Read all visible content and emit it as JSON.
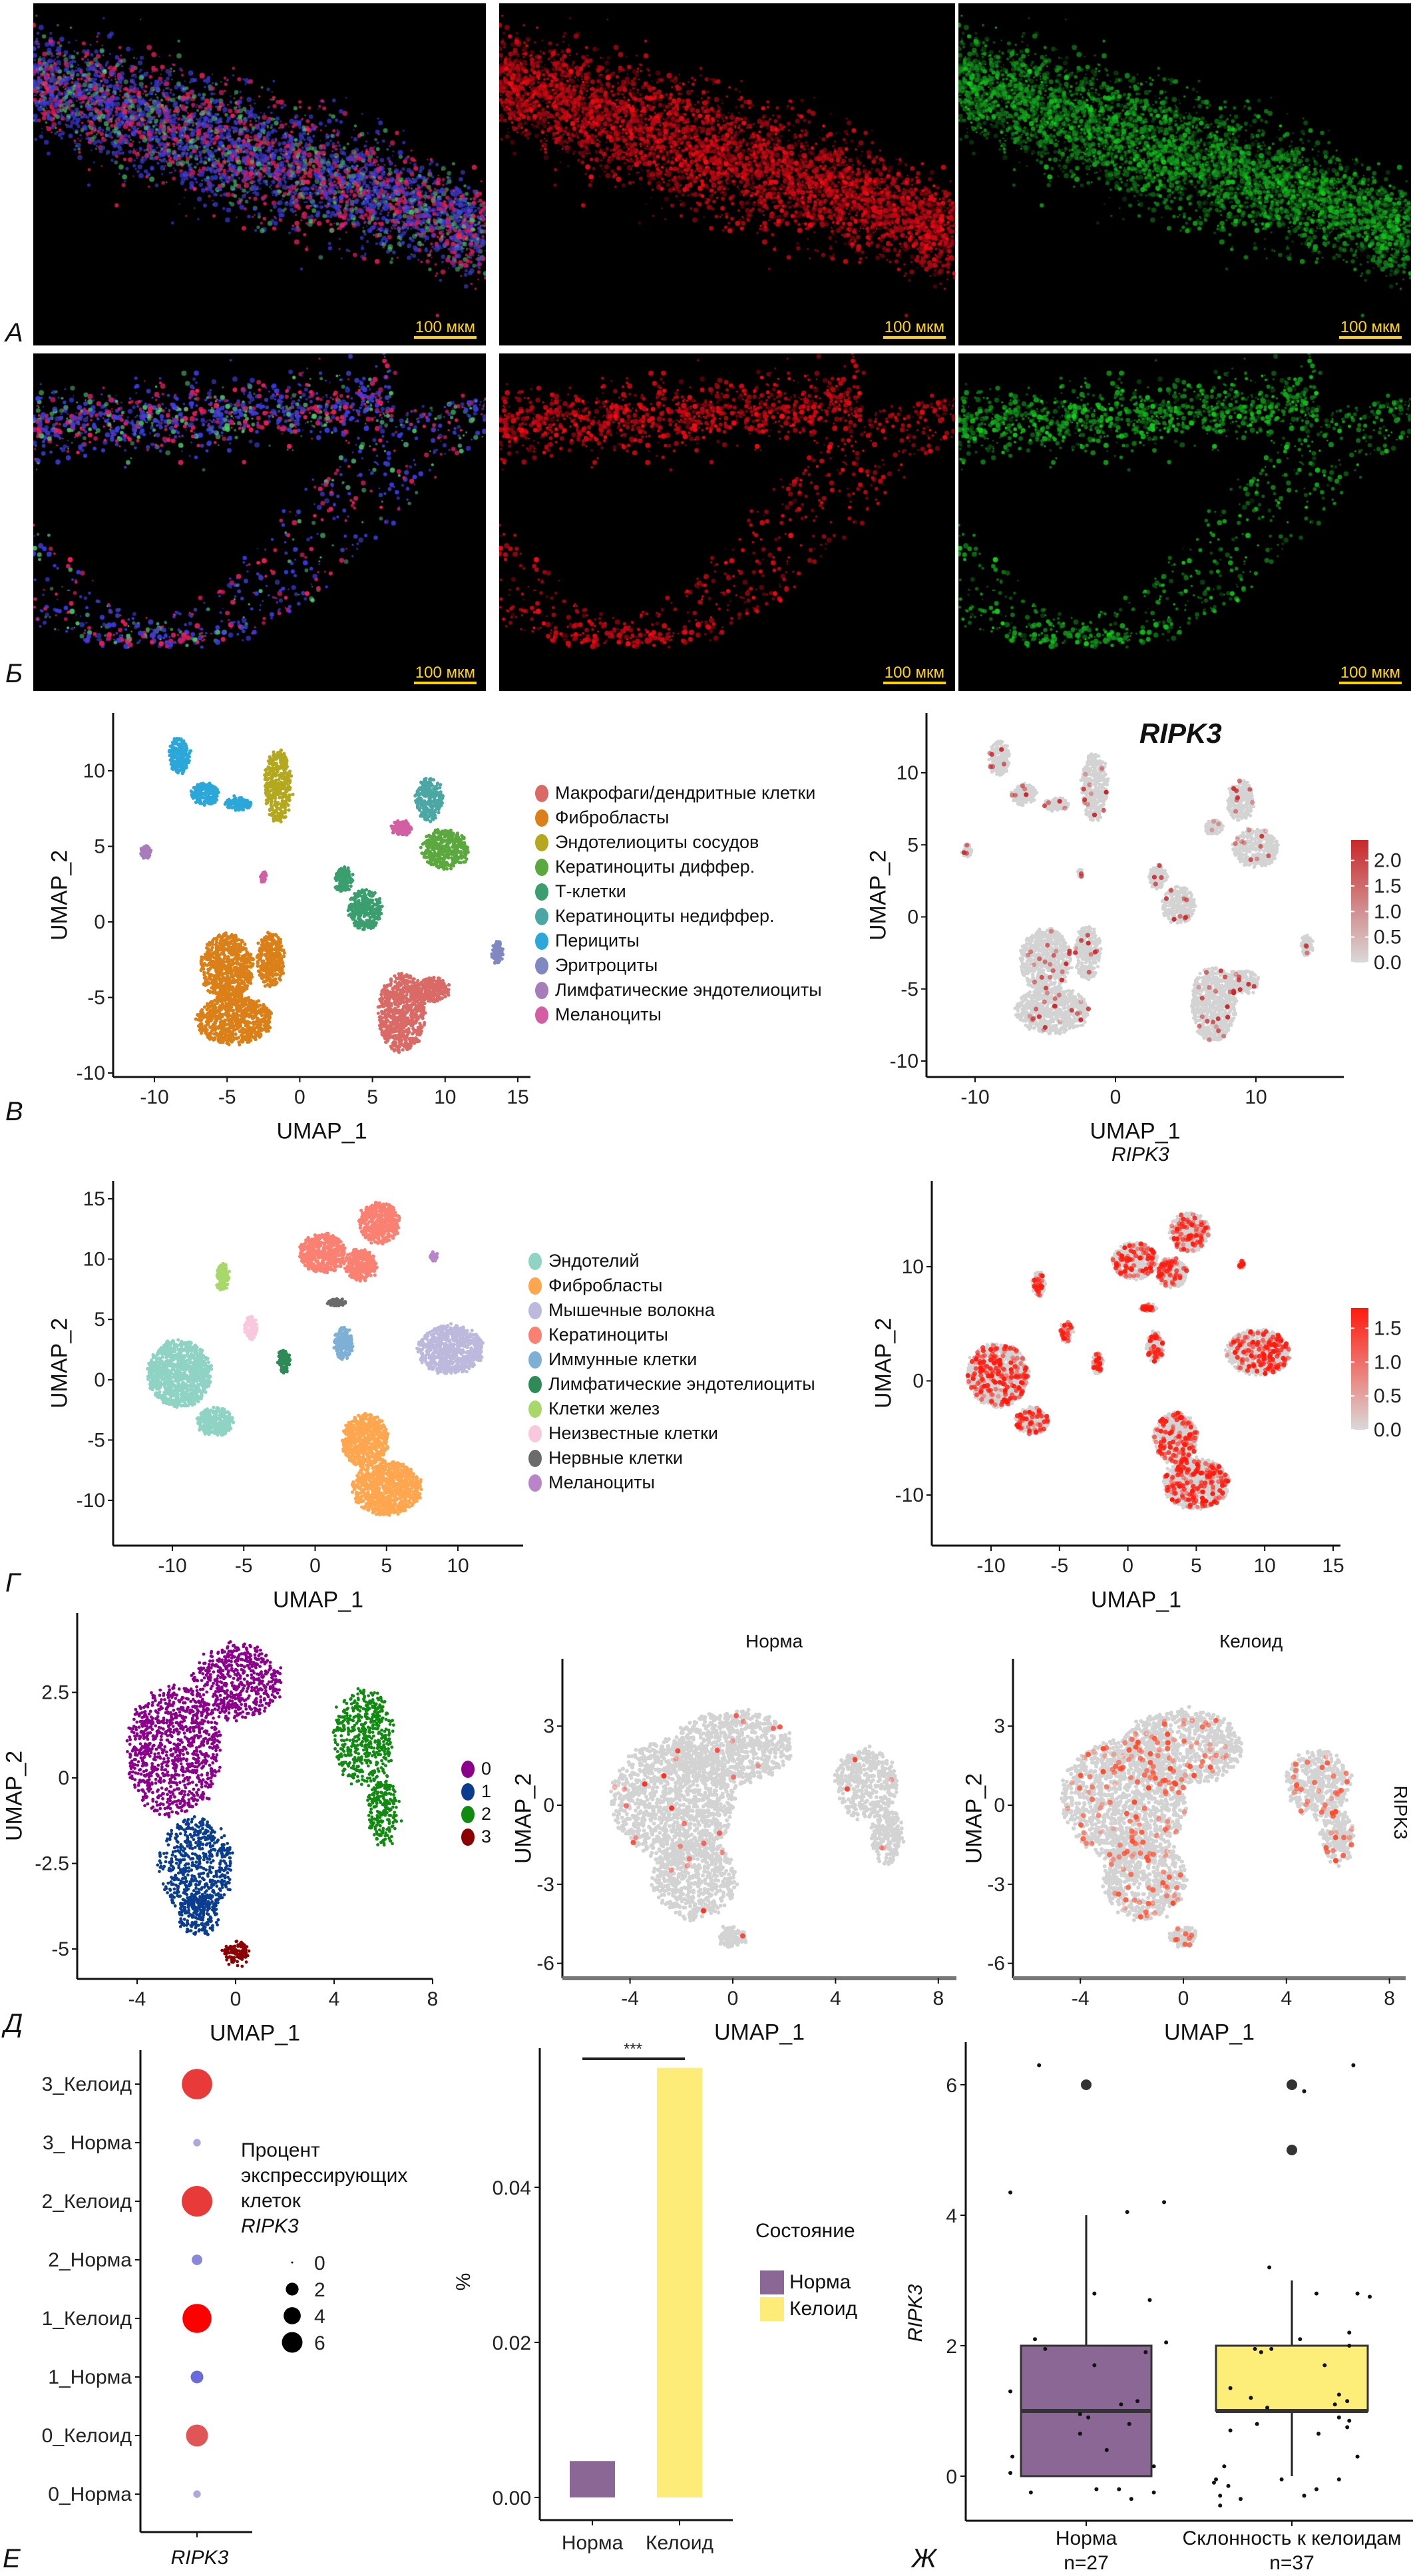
{
  "panel_letters": {
    "a": "А",
    "b": "Б",
    "v": "В",
    "g": "Г",
    "d": "Д",
    "e": "Е",
    "zh": "Ж"
  },
  "microscopy": {
    "scale_bar_label": "100 мкм",
    "rows": [
      {
        "letter": "А",
        "channels": [
          "merge",
          "red",
          "green"
        ]
      },
      {
        "letter": "Б",
        "channels": [
          "merge",
          "red",
          "green"
        ]
      }
    ]
  },
  "chart_data": [
    {
      "id": "v_clusters",
      "type": "scatter",
      "xlabel": "UMAP_1",
      "ylabel": "UMAP_2",
      "xticks": [
        -10,
        -5,
        0,
        5,
        10,
        15
      ],
      "yticks": [
        -10,
        -5,
        0,
        5,
        10
      ],
      "legend_placement": "right",
      "clusters": [
        {
          "label": "Макрофаги/дендритные клетки",
          "color": "#D96A66",
          "blobs": [
            [
              7,
              -6,
              1.6,
              2.6
            ],
            [
              9,
              -4.5,
              1.2,
              0.8
            ]
          ]
        },
        {
          "label": "Фибробласты",
          "color": "#DB8018",
          "blobs": [
            [
              -5,
              -3,
              1.8,
              2.2
            ],
            [
              -4.5,
              -6.5,
              2.6,
              1.6
            ],
            [
              -2,
              -2.5,
              0.9,
              1.8
            ]
          ]
        },
        {
          "label": "Эндотелиоциты сосудов",
          "color": "#B3A81E",
          "blobs": [
            [
              -1.5,
              9,
              0.9,
              2.4
            ]
          ]
        },
        {
          "label": "Кератиноциты диффер.",
          "color": "#5AA83E",
          "blobs": [
            [
              10,
              4.8,
              1.6,
              1.3
            ]
          ]
        },
        {
          "label": "Т-клетки",
          "color": "#3A9E6E",
          "blobs": [
            [
              4.5,
              0.8,
              1.1,
              1.3
            ],
            [
              3,
              2.8,
              0.6,
              0.8
            ]
          ]
        },
        {
          "label": "Кератиноциты недиффер.",
          "color": "#4BA7A4",
          "blobs": [
            [
              8.9,
              8.1,
              0.9,
              1.4
            ]
          ]
        },
        {
          "label": "Перициты",
          "color": "#2BA7D9",
          "blobs": [
            [
              -8.3,
              11,
              0.7,
              1.2
            ],
            [
              -6.5,
              8.5,
              0.9,
              0.7
            ],
            [
              -4.2,
              7.8,
              0.9,
              0.4
            ]
          ]
        },
        {
          "label": "Эритроциты",
          "color": "#8088C2",
          "blobs": [
            [
              13.6,
              -2,
              0.35,
              0.7
            ]
          ]
        },
        {
          "label": "Лимфатические эндотелиоциты",
          "color": "#A67DB8",
          "blobs": [
            [
              -10.6,
              4.6,
              0.3,
              0.4
            ]
          ]
        },
        {
          "label": "Меланоциты",
          "color": "#D35FA3",
          "blobs": [
            [
              7,
              6.2,
              0.6,
              0.5
            ],
            [
              -2.5,
              3,
              0.1,
              0.3
            ]
          ]
        }
      ]
    },
    {
      "id": "v_feature",
      "type": "scatter",
      "title": "RIPK3",
      "xlabel": "UMAP_1",
      "ylabel": "UMAP_2",
      "xticks": [
        -10,
        0,
        10
      ],
      "yticks": [
        -10,
        -5,
        0,
        5,
        10
      ],
      "colorbar": {
        "ticks": [
          "2.0",
          "1.5",
          "1.0",
          "0.5",
          "0.0"
        ],
        "range": [
          0,
          2.4
        ],
        "low_color": "#D9D9D9",
        "high_color": "#C8282A"
      },
      "expressing_share": 0.03
    },
    {
      "id": "g_clusters",
      "type": "scatter",
      "xlabel": "UMAP_1",
      "ylabel": "UMAP_2",
      "xticks": [
        -10,
        -5,
        0,
        5,
        10
      ],
      "yticks": [
        -10,
        -5,
        0,
        5,
        10,
        15
      ],
      "legend_placement": "right",
      "clusters": [
        {
          "label": "Эндотелий",
          "color": "#8ED3C3",
          "blobs": [
            [
              -9.5,
              0.5,
              2.2,
              2.8
            ],
            [
              -7,
              -3.5,
              1.2,
              1.2
            ]
          ]
        },
        {
          "label": "Фибробласты",
          "color": "#FFA64F",
          "blobs": [
            [
              3.5,
              -5,
              1.6,
              2.2
            ],
            [
              5,
              -9,
              2.4,
              2.2
            ]
          ]
        },
        {
          "label": "Мышечные волокна",
          "color": "#BCB9DD",
          "blobs": [
            [
              9.5,
              2.5,
              2.3,
              2.0
            ]
          ]
        },
        {
          "label": "Кератиноциты",
          "color": "#FA8072",
          "blobs": [
            [
              4.5,
              13,
              1.4,
              1.7
            ],
            [
              0.5,
              10.5,
              1.6,
              1.6
            ],
            [
              3.2,
              9.5,
              1.1,
              1.3
            ]
          ]
        },
        {
          "label": "Иммунные клетки",
          "color": "#7EB0D6",
          "blobs": [
            [
              2,
              3,
              0.6,
              1.3
            ]
          ]
        },
        {
          "label": "Лимфатические эндотелиоциты",
          "color": "#2E8B57",
          "blobs": [
            [
              -2.2,
              1.5,
              0.35,
              0.9
            ]
          ]
        },
        {
          "label": "Клетки желез",
          "color": "#A9D86A",
          "blobs": [
            [
              -6.5,
              8.5,
              0.4,
              1.1
            ]
          ]
        },
        {
          "label": "Неизвестные клетки",
          "color": "#F8C8DD",
          "blobs": [
            [
              -4.5,
              4.3,
              0.4,
              0.9
            ]
          ]
        },
        {
          "label": "Нервные клетки",
          "color": "#6B6B6B",
          "blobs": [
            [
              1.5,
              6.4,
              0.6,
              0.25
            ]
          ]
        },
        {
          "label": "Меланоциты",
          "color": "#B985C9",
          "blobs": [
            [
              8.3,
              10.2,
              0.15,
              0.3
            ]
          ]
        }
      ]
    },
    {
      "id": "g_feature",
      "type": "scatter",
      "title": "RIPK3",
      "xlabel": "UMAP_1",
      "ylabel": "UMAP_2",
      "xticks": [
        -10,
        -5,
        0,
        5,
        10,
        15
      ],
      "yticks": [
        -10,
        0,
        10
      ],
      "colorbar": {
        "ticks": [
          "1.5",
          "1.0",
          "0.5",
          "0.0"
        ],
        "range": [
          0,
          1.8
        ],
        "low_color": "#D9D9D9",
        "high_color": "#FF1A0D"
      },
      "expressing_share": 0.18
    },
    {
      "id": "d_clusters",
      "type": "scatter",
      "xlabel": "UMAP_1",
      "ylabel": "UMAP_2",
      "xticks": [
        -4,
        0,
        4,
        8
      ],
      "yticks": [
        -5,
        -2.5,
        0,
        2.5
      ],
      "legend_placement": "right",
      "clusters": [
        {
          "label": "0",
          "color": "#8B008B",
          "blobs": [
            [
              -2.5,
              0.8,
              1.9,
              1.9
            ],
            [
              0,
              2.8,
              1.8,
              1.1
            ]
          ]
        },
        {
          "label": "1",
          "color": "#0B3D8F",
          "blobs": [
            [
              -1.6,
              -2.6,
              1.5,
              1.4
            ],
            [
              -1.5,
              -4,
              0.8,
              0.6
            ]
          ]
        },
        {
          "label": "2",
          "color": "#118A11",
          "blobs": [
            [
              5.2,
              1.2,
              1.2,
              1.4
            ],
            [
              6,
              -1,
              0.6,
              1.0
            ]
          ]
        },
        {
          "label": "3",
          "color": "#8B0000",
          "blobs": [
            [
              0,
              -5.1,
              0.5,
              0.3
            ]
          ]
        }
      ]
    },
    {
      "id": "d_norm",
      "type": "scatter",
      "title": "Норма",
      "xlabel": "UMAP_1",
      "ylabel": "UMAP_2",
      "xticks": [
        -4,
        0,
        4,
        8
      ],
      "yticks": [
        -6,
        -3,
        0,
        3
      ],
      "expressing_share": 0.01
    },
    {
      "id": "d_keloid",
      "type": "scatter",
      "title": "Келоид",
      "xlabel": "UMAP_1",
      "ylabel": "UMAP_2",
      "side_label": "RIPK3",
      "xticks": [
        -4,
        0,
        4,
        8
      ],
      "yticks": [
        -6,
        -3,
        0,
        3
      ],
      "expressing_share": 0.07
    },
    {
      "id": "e_dotplot",
      "type": "scatter",
      "xlabel": "RIPK3",
      "categories": [
        "3_Келоид",
        "3_ Норма",
        "2_Келоид",
        "2_Норма",
        "1_Келоид",
        "1_Норма",
        "0_Келоид",
        "0_Норма"
      ],
      "percent": [
        6.2,
        0.2,
        6.3,
        0.5,
        5.6,
        0.8,
        3.0,
        0.2
      ],
      "colors": [
        "#E93A3A",
        "#B0A8D8",
        "#E93A3A",
        "#8A88D8",
        "#FF0000",
        "#6A6AD8",
        "#E05656",
        "#B0A8D8"
      ],
      "legend_title": [
        "Процент",
        "экспрессирующих",
        "клеток",
        "RIPK3"
      ],
      "size_legend": [
        "0",
        "2",
        "4",
        "6"
      ]
    },
    {
      "id": "e_bar",
      "type": "bar",
      "categories": [
        "Норма",
        "Келоид"
      ],
      "values": [
        0.0047,
        0.0554
      ],
      "colors": [
        "#8B6795",
        "#FEEC78"
      ],
      "ylabel": "%",
      "ylim": [
        0,
        0.058
      ],
      "yticks": [
        "0.00",
        "0.02",
        "0.04"
      ],
      "significance": "***",
      "legend_title": "Состояние",
      "legend": [
        "Норма",
        "Келоид"
      ]
    },
    {
      "id": "zh_box",
      "type": "box",
      "ylabel": "RIPK3",
      "yticks": [
        0,
        2,
        4,
        6
      ],
      "categories": [
        {
          "label": "Норма",
          "n": "n=27",
          "color": "#8B6795",
          "q1": 0,
          "median": 1,
          "q3": 2,
          "whisker_low": 0,
          "whisker_high": 4,
          "outliers": [
            6
          ],
          "points": [
            [
              -0.23,
              6.3
            ],
            [
              -0.37,
              4.35
            ],
            [
              0.38,
              4.2
            ],
            [
              0.2,
              4.05
            ],
            [
              0.04,
              2.8
            ],
            [
              0.31,
              2.7
            ],
            [
              -0.25,
              2.1
            ],
            [
              0.39,
              2.05
            ],
            [
              0.29,
              1.9
            ],
            [
              0.04,
              1.7
            ],
            [
              -0.37,
              1.3
            ],
            [
              0.25,
              1.15
            ],
            [
              0.17,
              1.1
            ],
            [
              -0.03,
              0.95
            ],
            [
              0.01,
              0.9
            ],
            [
              0.21,
              0.8
            ],
            [
              -0.03,
              0.65
            ],
            [
              -0.36,
              0.3
            ],
            [
              0.33,
              0.15
            ],
            [
              -0.37,
              0.05
            ],
            [
              -0.27,
              -0.25
            ],
            [
              0.05,
              -0.2
            ],
            [
              0.16,
              -0.2
            ],
            [
              0.33,
              -0.25
            ],
            [
              0.22,
              -0.35
            ],
            [
              -0.2,
              1.95
            ],
            [
              0.1,
              0.4
            ]
          ]
        },
        {
          "label": "Склонность к келоидам",
          "n": "n=37",
          "color": "#FDEE79",
          "q1": 1,
          "median": 1,
          "q3": 2,
          "whisker_low": 0,
          "whisker_high": 3,
          "outliers": [
            6,
            5
          ],
          "points": [
            [
              0.3,
              6.3
            ],
            [
              0.06,
              5.9
            ],
            [
              -0.11,
              3.2
            ],
            [
              0.12,
              2.8
            ],
            [
              0.32,
              2.8
            ],
            [
              0.38,
              2.75
            ],
            [
              0.28,
              2.2
            ],
            [
              0.28,
              2.0
            ],
            [
              0.04,
              2.1
            ],
            [
              -0.18,
              1.95
            ],
            [
              -0.1,
              1.95
            ],
            [
              -0.15,
              1.9
            ],
            [
              0.16,
              1.7
            ],
            [
              -0.3,
              1.35
            ],
            [
              -0.2,
              1.2
            ],
            [
              0.23,
              1.25
            ],
            [
              0.27,
              1.15
            ],
            [
              0.21,
              1.1
            ],
            [
              -0.12,
              1.05
            ],
            [
              0.23,
              0.9
            ],
            [
              0.28,
              0.85
            ],
            [
              -0.17,
              0.8
            ],
            [
              0.27,
              0.75
            ],
            [
              -0.3,
              0.7
            ],
            [
              0.13,
              0.65
            ],
            [
              0.32,
              0.3
            ],
            [
              -0.33,
              0.15
            ],
            [
              -0.37,
              -0.05
            ],
            [
              -0.31,
              -0.15
            ],
            [
              -0.05,
              -0.05
            ],
            [
              0.23,
              -0.05
            ],
            [
              -0.35,
              -0.3
            ],
            [
              -0.35,
              -0.45
            ],
            [
              0.06,
              -0.3
            ],
            [
              -0.38,
              -0.1
            ],
            [
              0.12,
              -0.2
            ],
            [
              -0.25,
              -0.35
            ]
          ]
        }
      ]
    }
  ]
}
